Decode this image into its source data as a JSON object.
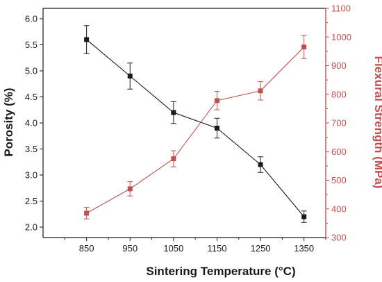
{
  "chart_data": {
    "type": "line",
    "title": "",
    "xlabel": "Sintering Temperature (°C)",
    "ylabel_left": "Porosity (%)",
    "ylabel_right": "Flexural Strength (MPa)",
    "x": [
      850,
      950,
      1050,
      1150,
      1250,
      1350
    ],
    "x_tick_labels": [
      "850",
      "950",
      "1050",
      "1150",
      "1250",
      "1350"
    ],
    "xlim": [
      750,
      1400
    ],
    "ylim_left": [
      1.8,
      6.2
    ],
    "ylim_right": [
      300,
      1100
    ],
    "y_left_ticks": [
      "2.0",
      "2.5",
      "3.0",
      "3.5",
      "4.0",
      "4.5",
      "5.0",
      "5.5",
      "6.0"
    ],
    "y_right_ticks": [
      "300",
      "400",
      "500",
      "600",
      "700",
      "800",
      "900",
      "1000",
      "1100"
    ],
    "grid": false,
    "series": [
      {
        "axis": "left",
        "color": "#1a1a1a",
        "marker": "square",
        "values": [
          5.6,
          4.9,
          4.2,
          3.9,
          3.2,
          2.2
        ],
        "errors": [
          0.27,
          0.25,
          0.21,
          0.19,
          0.15,
          0.11
        ]
      },
      {
        "axis": "right",
        "color": "#c0504d",
        "marker": "square",
        "values": [
          385,
          470,
          575,
          778,
          812,
          965
        ],
        "errors": [
          20,
          25,
          28,
          32,
          32,
          40
        ]
      }
    ]
  }
}
